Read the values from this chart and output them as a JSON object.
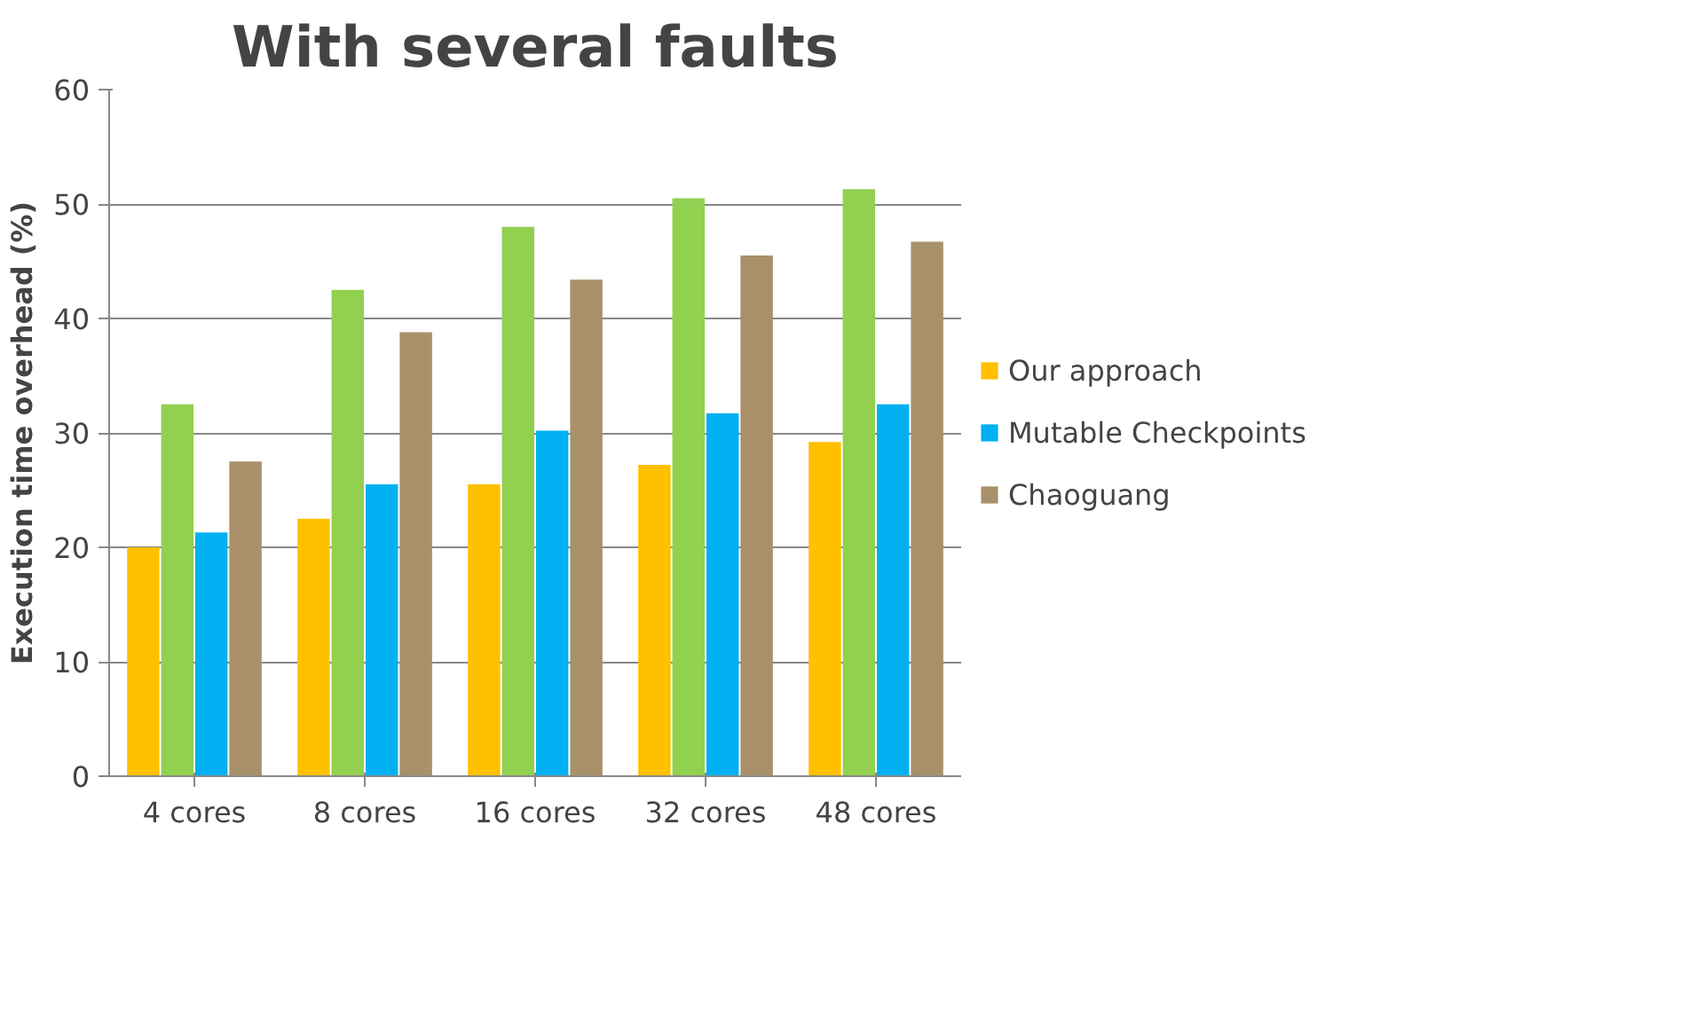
{
  "chart_data": {
    "type": "bar",
    "title": "With several faults",
    "ylabel": "Execution time overhead (%)",
    "categories": [
      "4 cores",
      "8 cores",
      "16 cores",
      "32 cores",
      "48 cores"
    ],
    "series": [
      {
        "name": "Our approach",
        "color": "#ffc000",
        "values": [
          20,
          22.5,
          25.5,
          27.2,
          29.2
        ]
      },
      {
        "color": "#92d050",
        "values": [
          32.5,
          42.5,
          48,
          50.5,
          51.3
        ]
      },
      {
        "name": "Mutable Checkpoints",
        "color": "#00b0f0",
        "values": [
          21.3,
          25.5,
          30.2,
          31.7,
          32.5
        ]
      },
      {
        "name": "Chaoguang",
        "color": "#a8916a",
        "values": [
          27.5,
          38.8,
          43.4,
          45.5,
          46.7
        ]
      }
    ],
    "ylim": [
      0,
      60
    ],
    "yticks": [
      0,
      10,
      20,
      30,
      40,
      50,
      60
    ],
    "grid": "y",
    "legend": "right"
  }
}
